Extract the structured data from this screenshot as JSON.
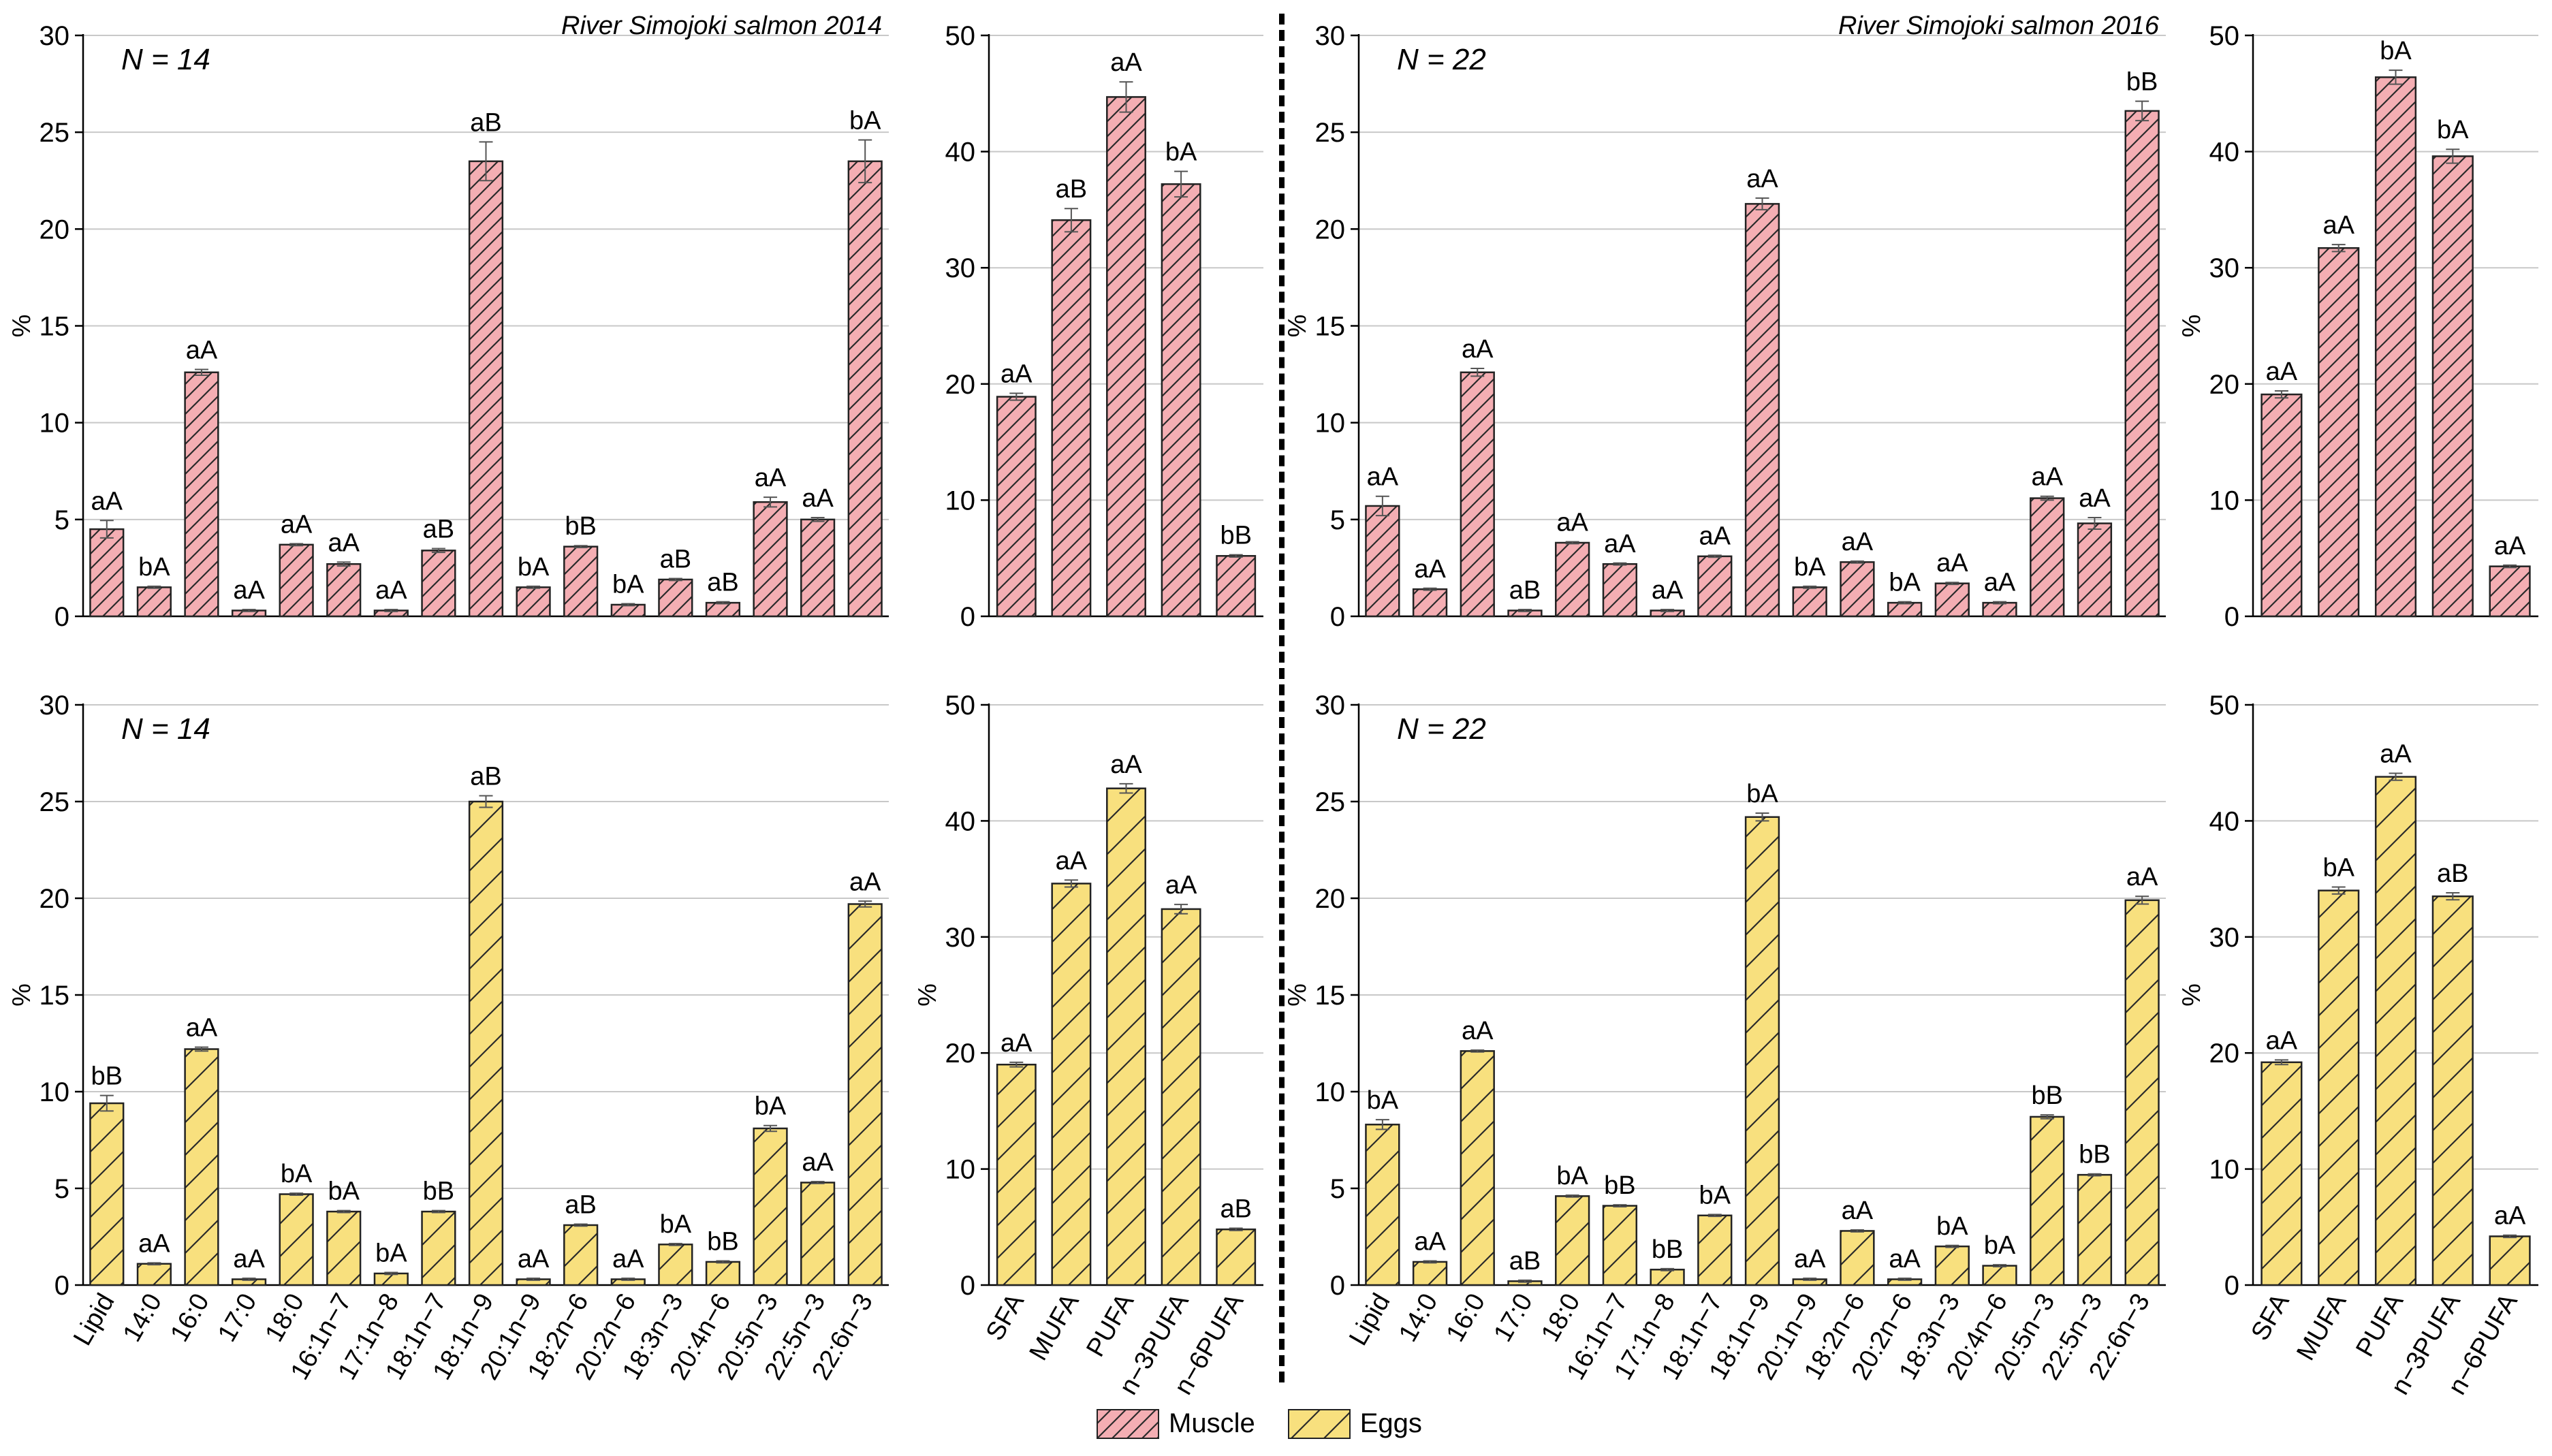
{
  "colors": {
    "muscle_fill": "#f4aeb3",
    "eggs_fill": "#f8e07e",
    "grid": "#c8c8c8",
    "text": "#000000"
  },
  "legend": {
    "muscle": "Muscle",
    "eggs": "Eggs"
  },
  "chart_data": [
    {
      "type": "bar",
      "id": "m2014_fa",
      "title": "River Simojoki salmon 2014",
      "n_label": "N = 14",
      "series_name": "Muscle",
      "ylabel": "%",
      "ylim": [
        0,
        30
      ],
      "yticks": [
        0,
        5,
        10,
        15,
        20,
        25,
        30
      ],
      "categories": [
        "Lipid",
        "14:0",
        "16:0",
        "17:0",
        "18:0",
        "16:1n−7",
        "17:1n−8",
        "18:1n−7",
        "18:1n−9",
        "20:1n−9",
        "18:2n−6",
        "20:2n−6",
        "18:3n−3",
        "20:4n−6",
        "20:5n−3",
        "22:5n−3",
        "22:6n−3"
      ],
      "values": [
        4.5,
        1.5,
        12.6,
        0.3,
        3.7,
        2.7,
        0.3,
        3.4,
        23.5,
        1.5,
        3.6,
        0.6,
        1.9,
        0.7,
        5.9,
        5.0,
        23.5
      ],
      "errors": [
        0.45,
        0.05,
        0.15,
        0.05,
        0.05,
        0.1,
        0.05,
        0.1,
        1.0,
        0.05,
        0.05,
        0.05,
        0.05,
        0.05,
        0.25,
        0.1,
        1.1
      ],
      "labels": [
        "aA",
        "bA",
        "aA",
        "aA",
        "aA",
        "aA",
        "aA",
        "aB",
        "aB",
        "bA",
        "bB",
        "bA",
        "aB",
        "aB",
        "aA",
        "aA",
        "bA"
      ]
    },
    {
      "type": "bar",
      "id": "m2014_sum",
      "series_name": "Muscle",
      "ylabel": "",
      "ylim": [
        0,
        50
      ],
      "yticks": [
        0,
        10,
        20,
        30,
        40,
        50
      ],
      "categories": [
        "SFA",
        "MUFA",
        "PUFA",
        "n−3PUFA",
        "n−6PUFA"
      ],
      "values": [
        18.9,
        34.1,
        44.7,
        37.2,
        5.2
      ],
      "errors": [
        0.3,
        1.0,
        1.3,
        1.1,
        0.1
      ],
      "labels": [
        "aA",
        "aB",
        "aA",
        "bA",
        "bB"
      ]
    },
    {
      "type": "bar",
      "id": "m2016_fa",
      "title": "River Simojoki salmon 2016",
      "n_label": "N = 22",
      "series_name": "Muscle",
      "ylabel": "%",
      "ylim": [
        0,
        30
      ],
      "yticks": [
        0,
        5,
        10,
        15,
        20,
        25,
        30
      ],
      "categories": [
        "Lipid",
        "14:0",
        "16:0",
        "17:0",
        "18:0",
        "16:1n−7",
        "17:1n−8",
        "18:1n−7",
        "18:1n−9",
        "20:1n−9",
        "18:2n−6",
        "20:2n−6",
        "18:3n−3",
        "20:4n−6",
        "20:5n−3",
        "22:5n−3",
        "22:6n−3"
      ],
      "values": [
        5.7,
        1.4,
        12.6,
        0.3,
        3.8,
        2.7,
        0.3,
        3.1,
        21.3,
        1.5,
        2.8,
        0.7,
        1.7,
        0.7,
        6.1,
        4.8,
        26.1
      ],
      "errors": [
        0.5,
        0.05,
        0.2,
        0.05,
        0.05,
        0.05,
        0.05,
        0.05,
        0.3,
        0.05,
        0.05,
        0.05,
        0.05,
        0.05,
        0.1,
        0.3,
        0.5
      ],
      "labels": [
        "aA",
        "aA",
        "aA",
        "aB",
        "aA",
        "aA",
        "aA",
        "aA",
        "aA",
        "bA",
        "aA",
        "bA",
        "aA",
        "aA",
        "aA",
        "aA",
        "bB"
      ]
    },
    {
      "type": "bar",
      "id": "m2016_sum",
      "series_name": "Muscle",
      "ylabel": "%",
      "ylim": [
        0,
        50
      ],
      "yticks": [
        0,
        10,
        20,
        30,
        40,
        50
      ],
      "categories": [
        "SFA",
        "MUFA",
        "PUFA",
        "n−3PUFA",
        "n−6PUFA"
      ],
      "values": [
        19.1,
        31.7,
        46.4,
        39.6,
        4.3
      ],
      "errors": [
        0.3,
        0.3,
        0.6,
        0.6,
        0.1
      ],
      "labels": [
        "aA",
        "aA",
        "bA",
        "bA",
        "aA"
      ]
    },
    {
      "type": "bar",
      "id": "e2014_fa",
      "n_label": "N = 14",
      "series_name": "Eggs",
      "ylabel": "%",
      "ylim": [
        0,
        30
      ],
      "yticks": [
        0,
        5,
        10,
        15,
        20,
        25,
        30
      ],
      "categories": [
        "Lipid",
        "14:0",
        "16:0",
        "17:0",
        "18:0",
        "16:1n−7",
        "17:1n−8",
        "18:1n−7",
        "18:1n−9",
        "20:1n−9",
        "18:2n−6",
        "20:2n−6",
        "18:3n−3",
        "20:4n−6",
        "20:5n−3",
        "22:5n−3",
        "22:6n−3"
      ],
      "values": [
        9.4,
        1.1,
        12.2,
        0.3,
        4.7,
        3.8,
        0.6,
        3.8,
        25.0,
        0.3,
        3.1,
        0.3,
        2.1,
        1.2,
        8.1,
        5.3,
        19.7
      ],
      "errors": [
        0.4,
        0.05,
        0.1,
        0.05,
        0.05,
        0.05,
        0.05,
        0.05,
        0.3,
        0.05,
        0.05,
        0.05,
        0.05,
        0.05,
        0.15,
        0.05,
        0.15
      ],
      "labels": [
        "bB",
        "aA",
        "aA",
        "aA",
        "bA",
        "bA",
        "bA",
        "bB",
        "aB",
        "aA",
        "aB",
        "aA",
        "bA",
        "bB",
        "bA",
        "aA",
        "aA"
      ],
      "xlabels_visible": true
    },
    {
      "type": "bar",
      "id": "e2014_sum",
      "series_name": "Eggs",
      "ylabel": "%",
      "ylim": [
        0,
        50
      ],
      "yticks": [
        0,
        10,
        20,
        30,
        40,
        50
      ],
      "categories": [
        "SFA",
        "MUFA",
        "PUFA",
        "n−3PUFA",
        "n−6PUFA"
      ],
      "values": [
        19.0,
        34.6,
        42.8,
        32.4,
        4.8
      ],
      "errors": [
        0.2,
        0.3,
        0.4,
        0.4,
        0.1
      ],
      "labels": [
        "aA",
        "aA",
        "aA",
        "aA",
        "aB"
      ],
      "xlabels_visible": true
    },
    {
      "type": "bar",
      "id": "e2016_fa",
      "n_label": "N = 22",
      "series_name": "Eggs",
      "ylabel": "%",
      "ylim": [
        0,
        30
      ],
      "yticks": [
        0,
        5,
        10,
        15,
        20,
        25,
        30
      ],
      "categories": [
        "Lipid",
        "14:0",
        "16:0",
        "17:0",
        "18:0",
        "16:1n−7",
        "17:1n−8",
        "18:1n−7",
        "18:1n−9",
        "20:1n−9",
        "18:2n−6",
        "20:2n−6",
        "18:3n−3",
        "20:4n−6",
        "20:5n−3",
        "22:5n−3",
        "22:6n−3"
      ],
      "values": [
        8.3,
        1.2,
        12.1,
        0.2,
        4.6,
        4.1,
        0.8,
        3.6,
        24.2,
        0.3,
        2.8,
        0.3,
        2.0,
        1.0,
        8.7,
        5.7,
        19.9
      ],
      "errors": [
        0.25,
        0.05,
        0.05,
        0.05,
        0.05,
        0.05,
        0.05,
        0.05,
        0.2,
        0.05,
        0.05,
        0.05,
        0.05,
        0.05,
        0.1,
        0.05,
        0.2
      ],
      "labels": [
        "bA",
        "aA",
        "aA",
        "aB",
        "bA",
        "bB",
        "bB",
        "bA",
        "bA",
        "aA",
        "aA",
        "aA",
        "bA",
        "bA",
        "bB",
        "bB",
        "aA"
      ],
      "xlabels_visible": true
    },
    {
      "type": "bar",
      "id": "e2016_sum",
      "series_name": "Eggs",
      "ylabel": "%",
      "ylim": [
        0,
        50
      ],
      "yticks": [
        0,
        10,
        20,
        30,
        40,
        50
      ],
      "categories": [
        "SFA",
        "MUFA",
        "PUFA",
        "n−3PUFA",
        "n−6PUFA"
      ],
      "values": [
        19.2,
        34.0,
        43.8,
        33.5,
        4.2
      ],
      "errors": [
        0.2,
        0.3,
        0.3,
        0.3,
        0.1
      ],
      "labels": [
        "aA",
        "bA",
        "aA",
        "aB",
        "aA"
      ],
      "xlabels_visible": true
    }
  ]
}
